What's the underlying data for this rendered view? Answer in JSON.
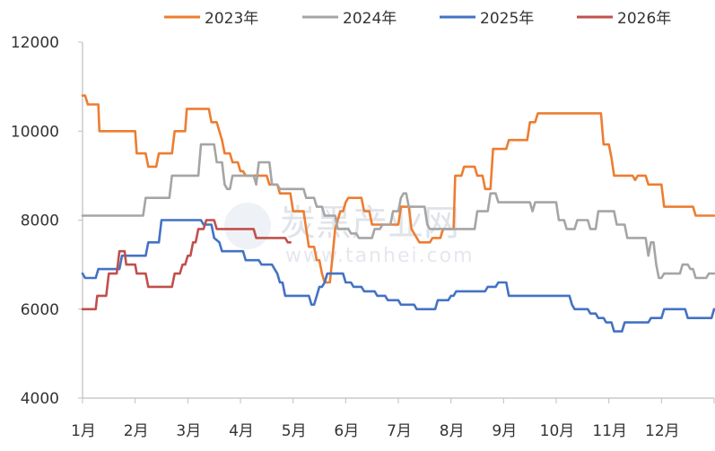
{
  "watermark": {
    "text": "炭黑产业网",
    "url": "www.tanhei.com"
  },
  "chart_data": {
    "type": "line",
    "title": "",
    "xlabel": "",
    "ylabel": "",
    "xlim": [
      0,
      12
    ],
    "ylim": [
      4000,
      12000
    ],
    "yticks": [
      4000,
      6000,
      8000,
      10000,
      12000
    ],
    "ytick_labels": [
      "4000",
      "6000",
      "8000",
      "10000",
      "12000"
    ],
    "xtick_labels": [
      "1月",
      "2月",
      "3月",
      "4月",
      "5月",
      "6月",
      "7月",
      "8月",
      "9月",
      "10月",
      "11月",
      "12月"
    ],
    "grid": false,
    "legend_position": "top",
    "series": [
      {
        "name": "2023年",
        "color": "#ED7D31",
        "points": [
          [
            0.0,
            10800
          ],
          [
            0.05,
            10800
          ],
          [
            0.1,
            10600
          ],
          [
            0.3,
            10600
          ],
          [
            0.32,
            10000
          ],
          [
            1.0,
            10000
          ],
          [
            1.03,
            9500
          ],
          [
            1.2,
            9500
          ],
          [
            1.25,
            9200
          ],
          [
            1.4,
            9200
          ],
          [
            1.45,
            9500
          ],
          [
            1.7,
            9500
          ],
          [
            1.75,
            10000
          ],
          [
            1.95,
            10000
          ],
          [
            1.98,
            10500
          ],
          [
            2.4,
            10500
          ],
          [
            2.45,
            10200
          ],
          [
            2.55,
            10200
          ],
          [
            2.6,
            10000
          ],
          [
            2.65,
            9800
          ],
          [
            2.7,
            9500
          ],
          [
            2.8,
            9500
          ],
          [
            2.85,
            9300
          ],
          [
            2.95,
            9300
          ],
          [
            3.0,
            9100
          ],
          [
            3.05,
            9100
          ],
          [
            3.1,
            9000
          ],
          [
            3.5,
            9000
          ],
          [
            3.55,
            8800
          ],
          [
            3.7,
            8800
          ],
          [
            3.75,
            8600
          ],
          [
            3.95,
            8600
          ],
          [
            4.0,
            8200
          ],
          [
            4.2,
            8200
          ],
          [
            4.25,
            7800
          ],
          [
            4.3,
            7400
          ],
          [
            4.4,
            7400
          ],
          [
            4.45,
            7100
          ],
          [
            4.5,
            7100
          ],
          [
            4.55,
            6800
          ],
          [
            4.6,
            6600
          ],
          [
            4.7,
            6600
          ],
          [
            4.75,
            7200
          ],
          [
            4.8,
            7800
          ],
          [
            4.85,
            8000
          ],
          [
            4.9,
            8200
          ],
          [
            4.95,
            8200
          ],
          [
            5.0,
            8400
          ],
          [
            5.05,
            8500
          ],
          [
            5.3,
            8500
          ],
          [
            5.35,
            8200
          ],
          [
            5.45,
            8200
          ],
          [
            5.5,
            7900
          ],
          [
            6.0,
            7900
          ],
          [
            6.05,
            8300
          ],
          [
            6.2,
            8300
          ],
          [
            6.25,
            7800
          ],
          [
            6.3,
            7700
          ],
          [
            6.4,
            7500
          ],
          [
            6.6,
            7500
          ],
          [
            6.65,
            7600
          ],
          [
            6.8,
            7600
          ],
          [
            6.85,
            7800
          ],
          [
            7.05,
            7800
          ],
          [
            7.08,
            9000
          ],
          [
            7.2,
            9000
          ],
          [
            7.25,
            9200
          ],
          [
            7.45,
            9200
          ],
          [
            7.5,
            9000
          ],
          [
            7.6,
            9000
          ],
          [
            7.65,
            8700
          ],
          [
            7.75,
            8700
          ],
          [
            7.8,
            9600
          ],
          [
            8.05,
            9600
          ],
          [
            8.1,
            9800
          ],
          [
            8.45,
            9800
          ],
          [
            8.5,
            10200
          ],
          [
            8.6,
            10200
          ],
          [
            8.65,
            10400
          ],
          [
            9.85,
            10400
          ],
          [
            9.9,
            9700
          ],
          [
            10.0,
            9700
          ],
          [
            10.05,
            9400
          ],
          [
            10.1,
            9000
          ],
          [
            10.45,
            9000
          ],
          [
            10.5,
            8900
          ],
          [
            10.55,
            9000
          ],
          [
            10.7,
            9000
          ],
          [
            10.75,
            8800
          ],
          [
            11.0,
            8800
          ],
          [
            11.05,
            8300
          ],
          [
            11.6,
            8300
          ],
          [
            11.65,
            8100
          ],
          [
            12.0,
            8100
          ]
        ]
      },
      {
        "name": "2024年",
        "color": "#A5A5A5",
        "points": [
          [
            0.0,
            8100
          ],
          [
            1.15,
            8100
          ],
          [
            1.2,
            8500
          ],
          [
            1.65,
            8500
          ],
          [
            1.7,
            9000
          ],
          [
            2.2,
            9000
          ],
          [
            2.25,
            9700
          ],
          [
            2.5,
            9700
          ],
          [
            2.55,
            9300
          ],
          [
            2.65,
            9300
          ],
          [
            2.7,
            8800
          ],
          [
            2.75,
            8700
          ],
          [
            2.8,
            8700
          ],
          [
            2.85,
            9000
          ],
          [
            3.25,
            9000
          ],
          [
            3.3,
            8800
          ],
          [
            3.35,
            9300
          ],
          [
            3.55,
            9300
          ],
          [
            3.6,
            8800
          ],
          [
            3.7,
            8800
          ],
          [
            3.75,
            8700
          ],
          [
            4.2,
            8700
          ],
          [
            4.25,
            8500
          ],
          [
            4.4,
            8500
          ],
          [
            4.45,
            8300
          ],
          [
            4.55,
            8300
          ],
          [
            4.6,
            8100
          ],
          [
            4.8,
            8100
          ],
          [
            4.85,
            7800
          ],
          [
            5.05,
            7800
          ],
          [
            5.1,
            7700
          ],
          [
            5.2,
            7700
          ],
          [
            5.25,
            7600
          ],
          [
            5.5,
            7600
          ],
          [
            5.55,
            7800
          ],
          [
            5.65,
            7800
          ],
          [
            5.7,
            7900
          ],
          [
            5.85,
            7900
          ],
          [
            5.9,
            8200
          ],
          [
            6.0,
            8200
          ],
          [
            6.05,
            8500
          ],
          [
            6.1,
            8600
          ],
          [
            6.15,
            8600
          ],
          [
            6.2,
            8300
          ],
          [
            6.5,
            8300
          ],
          [
            6.55,
            7900
          ],
          [
            6.6,
            7800
          ],
          [
            7.45,
            7800
          ],
          [
            7.5,
            8200
          ],
          [
            7.7,
            8200
          ],
          [
            7.75,
            8600
          ],
          [
            7.85,
            8600
          ],
          [
            7.9,
            8400
          ],
          [
            8.5,
            8400
          ],
          [
            8.55,
            8200
          ],
          [
            8.6,
            8400
          ],
          [
            9.0,
            8400
          ],
          [
            9.05,
            8000
          ],
          [
            9.15,
            8000
          ],
          [
            9.2,
            7800
          ],
          [
            9.35,
            7800
          ],
          [
            9.4,
            8000
          ],
          [
            9.6,
            8000
          ],
          [
            9.65,
            7800
          ],
          [
            9.75,
            7800
          ],
          [
            9.8,
            8200
          ],
          [
            10.1,
            8200
          ],
          [
            10.15,
            7900
          ],
          [
            10.3,
            7900
          ],
          [
            10.35,
            7600
          ],
          [
            10.7,
            7600
          ],
          [
            10.75,
            7200
          ],
          [
            10.8,
            7500
          ],
          [
            10.85,
            7500
          ],
          [
            10.9,
            7000
          ],
          [
            10.95,
            6700
          ],
          [
            11.0,
            6700
          ],
          [
            11.05,
            6800
          ],
          [
            11.35,
            6800
          ],
          [
            11.4,
            7000
          ],
          [
            11.5,
            7000
          ],
          [
            11.55,
            6900
          ],
          [
            11.6,
            6900
          ],
          [
            11.65,
            6700
          ],
          [
            11.85,
            6700
          ],
          [
            11.9,
            6800
          ],
          [
            12.0,
            6800
          ]
        ]
      },
      {
        "name": "2025年",
        "color": "#4472C4",
        "points": [
          [
            0.0,
            6800
          ],
          [
            0.05,
            6700
          ],
          [
            0.25,
            6700
          ],
          [
            0.3,
            6900
          ],
          [
            0.7,
            6900
          ],
          [
            0.75,
            7200
          ],
          [
            1.2,
            7200
          ],
          [
            1.25,
            7500
          ],
          [
            1.45,
            7500
          ],
          [
            1.5,
            8000
          ],
          [
            2.25,
            8000
          ],
          [
            2.3,
            7900
          ],
          [
            2.45,
            7900
          ],
          [
            2.5,
            7600
          ],
          [
            2.6,
            7500
          ],
          [
            2.65,
            7300
          ],
          [
            3.05,
            7300
          ],
          [
            3.1,
            7100
          ],
          [
            3.35,
            7100
          ],
          [
            3.4,
            7000
          ],
          [
            3.6,
            7000
          ],
          [
            3.65,
            6900
          ],
          [
            3.7,
            6800
          ],
          [
            3.75,
            6600
          ],
          [
            3.8,
            6600
          ],
          [
            3.85,
            6300
          ],
          [
            4.3,
            6300
          ],
          [
            4.35,
            6100
          ],
          [
            4.4,
            6100
          ],
          [
            4.45,
            6300
          ],
          [
            4.5,
            6500
          ],
          [
            4.55,
            6500
          ],
          [
            4.6,
            6600
          ],
          [
            4.65,
            6800
          ],
          [
            4.95,
            6800
          ],
          [
            5.0,
            6600
          ],
          [
            5.1,
            6600
          ],
          [
            5.15,
            6500
          ],
          [
            5.3,
            6500
          ],
          [
            5.35,
            6400
          ],
          [
            5.55,
            6400
          ],
          [
            5.6,
            6300
          ],
          [
            5.75,
            6300
          ],
          [
            5.8,
            6200
          ],
          [
            6.0,
            6200
          ],
          [
            6.05,
            6100
          ],
          [
            6.3,
            6100
          ],
          [
            6.35,
            6000
          ],
          [
            6.7,
            6000
          ],
          [
            6.75,
            6200
          ],
          [
            6.95,
            6200
          ],
          [
            7.0,
            6300
          ],
          [
            7.05,
            6300
          ],
          [
            7.1,
            6400
          ],
          [
            7.65,
            6400
          ],
          [
            7.7,
            6500
          ],
          [
            7.85,
            6500
          ],
          [
            7.9,
            6600
          ],
          [
            8.05,
            6600
          ],
          [
            8.1,
            6300
          ],
          [
            9.25,
            6300
          ],
          [
            9.3,
            6100
          ],
          [
            9.35,
            6000
          ],
          [
            9.6,
            6000
          ],
          [
            9.65,
            5900
          ],
          [
            9.75,
            5900
          ],
          [
            9.8,
            5800
          ],
          [
            9.9,
            5800
          ],
          [
            9.95,
            5700
          ],
          [
            10.05,
            5700
          ],
          [
            10.1,
            5500
          ],
          [
            10.25,
            5500
          ],
          [
            10.3,
            5700
          ],
          [
            10.75,
            5700
          ],
          [
            10.8,
            5800
          ],
          [
            11.0,
            5800
          ],
          [
            11.05,
            6000
          ],
          [
            11.45,
            6000
          ],
          [
            11.5,
            5800
          ],
          [
            11.95,
            5800
          ],
          [
            12.0,
            6000
          ]
        ]
      },
      {
        "name": "2026年",
        "color": "#C0504D",
        "points": [
          [
            0.0,
            6000
          ],
          [
            0.25,
            6000
          ],
          [
            0.28,
            6300
          ],
          [
            0.45,
            6300
          ],
          [
            0.5,
            6800
          ],
          [
            0.65,
            6800
          ],
          [
            0.7,
            7300
          ],
          [
            0.8,
            7300
          ],
          [
            0.83,
            7000
          ],
          [
            1.0,
            7000
          ],
          [
            1.03,
            6800
          ],
          [
            1.2,
            6800
          ],
          [
            1.25,
            6500
          ],
          [
            1.7,
            6500
          ],
          [
            1.75,
            6800
          ],
          [
            1.85,
            6800
          ],
          [
            1.9,
            7000
          ],
          [
            1.95,
            7000
          ],
          [
            2.0,
            7200
          ],
          [
            2.05,
            7200
          ],
          [
            2.1,
            7500
          ],
          [
            2.15,
            7500
          ],
          [
            2.2,
            7800
          ],
          [
            2.3,
            7800
          ],
          [
            2.35,
            8000
          ],
          [
            2.5,
            8000
          ],
          [
            2.55,
            7800
          ],
          [
            3.25,
            7800
          ],
          [
            3.3,
            7600
          ],
          [
            3.85,
            7600
          ],
          [
            3.9,
            7500
          ],
          [
            3.95,
            7500
          ]
        ]
      }
    ]
  }
}
